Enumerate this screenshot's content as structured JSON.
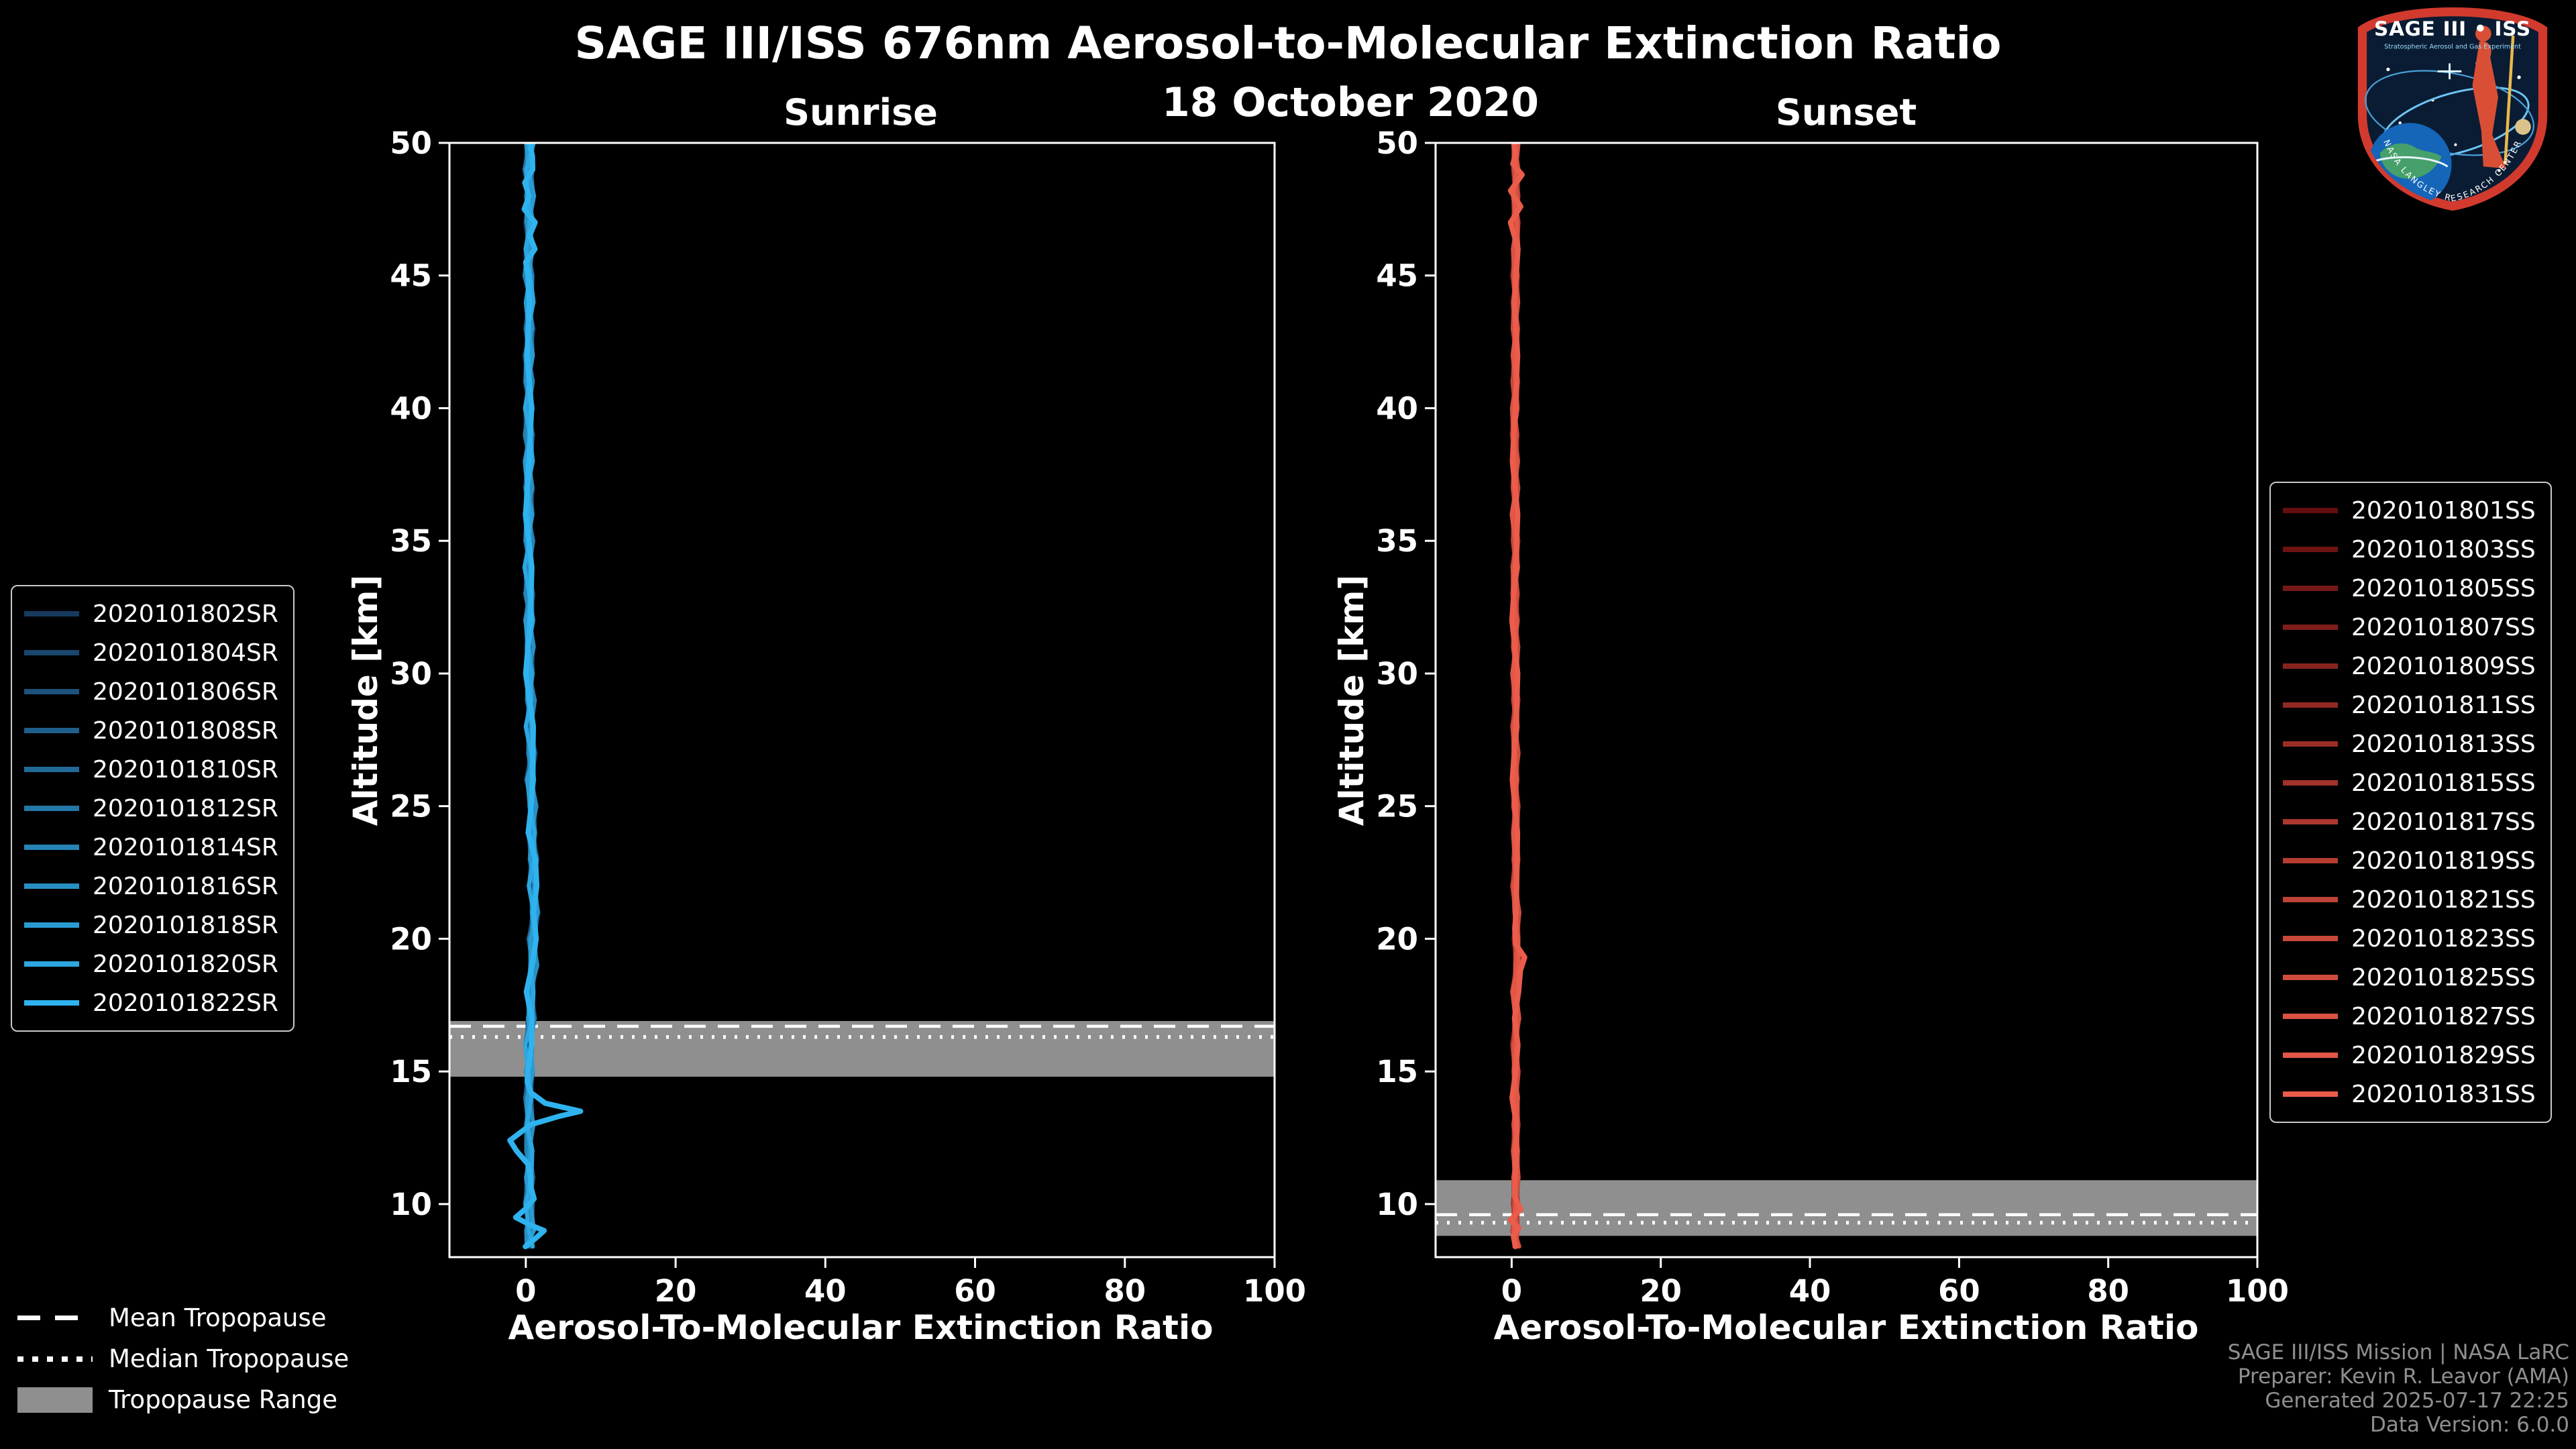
{
  "header": {
    "title": "SAGE III/ISS 676nm Aerosol-to-Molecular Extinction Ratio",
    "date": "18 October 2020"
  },
  "logo": {
    "title_text": "SAGE III • ISS",
    "subtitle_text": "Stratospheric Aerosol and Gas Experiment",
    "ring_text": "NASA LANGLEY RESEARCH CENTER",
    "colors": {
      "border": "#d23a2e",
      "field": "#0a1c33",
      "earth": "#1565b8",
      "land": "#46a06b",
      "figure": "#d94f35",
      "orbit": "#6ec6f5"
    }
  },
  "tropopause_legend": {
    "items": [
      {
        "label": "Mean Tropopause",
        "style": "dashed"
      },
      {
        "label": "Median Tropopause",
        "style": "dotted"
      },
      {
        "label": "Tropopause Range",
        "style": "patch"
      }
    ]
  },
  "footer": {
    "lines": [
      "SAGE III/ISS Mission | NASA LaRC",
      "Preparer: Kevin R. Leavor (AMA)",
      "Generated 2025-07-17 22:25",
      "Data Version: 6.0.0"
    ]
  },
  "chart_data": [
    {
      "type": "line",
      "title": "Sunrise",
      "xlabel": "Aerosol-To-Molecular Extinction Ratio",
      "ylabel": "Altitude [km]",
      "xlim": [
        -10.2,
        100
      ],
      "ylim": [
        8,
        50
      ],
      "xticks": [
        0,
        20,
        40,
        60,
        80,
        100
      ],
      "yticks": [
        10,
        15,
        20,
        25,
        30,
        35,
        40,
        45,
        50
      ],
      "grid": false,
      "legend_position": "outside-left",
      "background": "#000000",
      "tropopause": {
        "mean_km": 16.7,
        "median_km": 16.3,
        "range_km": [
          14.8,
          16.9
        ]
      },
      "jitter_amplitude": 0.4,
      "series": [
        {
          "name": "2020101802SR",
          "color": "#173A5E",
          "profile": "base"
        },
        {
          "name": "2020101804SR",
          "color": "#19466D",
          "profile": "base"
        },
        {
          "name": "2020101806SR",
          "color": "#1C527B",
          "profile": "base"
        },
        {
          "name": "2020101808SR",
          "color": "#1E5E8A",
          "profile": "base"
        },
        {
          "name": "2020101810SR",
          "color": "#216A98",
          "profile": "base"
        },
        {
          "name": "2020101812SR",
          "color": "#2377A7",
          "profile": "base"
        },
        {
          "name": "2020101814SR",
          "color": "#2583B5",
          "profile": "base"
        },
        {
          "name": "2020101816SR",
          "color": "#288FC4",
          "profile": "base"
        },
        {
          "name": "2020101818SR",
          "color": "#2A9BD2",
          "profile": "base"
        },
        {
          "name": "2020101820SR",
          "color": "#2DA7E1",
          "profile": "base"
        },
        {
          "name": "2020101822SR",
          "color": "#2FB3EF",
          "profile": "feature"
        }
      ],
      "profiles": {
        "base": {
          "altitude_km": [
            8.4,
            9,
            10,
            11,
            12,
            13,
            14,
            15,
            16,
            17,
            18,
            19,
            20,
            21,
            22,
            23,
            24,
            25,
            26,
            27,
            28,
            29,
            30,
            31,
            32,
            33,
            34,
            35,
            36,
            37,
            38,
            39,
            40,
            41,
            42,
            43,
            44,
            45,
            46,
            47,
            48,
            49,
            50
          ],
          "ratio": [
            0.3,
            0.5,
            0.5,
            0.4,
            0.5,
            0.4,
            0.5,
            0.4,
            0.5,
            0.6,
            0.7,
            0.9,
            1.0,
            1.1,
            1.0,
            0.9,
            0.9,
            0.8,
            0.7,
            0.7,
            0.6,
            0.6,
            0.5,
            0.5,
            0.5,
            0.4,
            0.4,
            0.4,
            0.4,
            0.4,
            0.4,
            0.4,
            0.4,
            0.4,
            0.4,
            0.5,
            0.5,
            0.4,
            0.4,
            0.5,
            0.5,
            0.4,
            0.5
          ]
        },
        "feature": {
          "altitude_km": [
            8.4,
            8.7,
            9.0,
            9.2,
            9.5,
            9.8,
            10.2,
            10.6,
            11.0,
            11.5,
            12.0,
            12.4,
            12.7,
            13.0,
            13.3,
            13.5,
            13.8,
            14.2,
            14.6,
            15,
            16,
            17,
            18,
            19,
            20,
            21,
            22,
            23,
            24,
            25,
            26,
            28,
            30,
            32,
            34,
            36,
            38,
            40,
            42,
            44,
            45,
            45.5,
            46,
            46.5,
            47,
            47.5,
            48,
            48.5,
            49,
            49.5,
            50
          ],
          "ratio": [
            0.2,
            1.6,
            2.6,
            0.9,
            -0.9,
            0.1,
            0.6,
            0.4,
            0.5,
            0.2,
            -0.6,
            -1.9,
            -0.8,
            0.7,
            4.2,
            6.9,
            2.0,
            0.7,
            0.5,
            0.4,
            0.5,
            0.6,
            0.7,
            0.9,
            1.1,
            1.2,
            1.1,
            1.0,
            0.9,
            0.8,
            0.7,
            0.6,
            0.5,
            0.5,
            0.4,
            0.4,
            0.4,
            0.4,
            0.5,
            0.5,
            0.8,
            0.2,
            0.9,
            0.3,
            0.8,
            0.2,
            0.7,
            0.1,
            0.8,
            0.3,
            0.5
          ]
        }
      }
    },
    {
      "type": "line",
      "title": "Sunset",
      "xlabel": "Aerosol-To-Molecular Extinction Ratio",
      "ylabel": "Altitude [km]",
      "xlim": [
        -10.2,
        100
      ],
      "ylim": [
        8,
        50
      ],
      "xticks": [
        0,
        20,
        40,
        60,
        80,
        100
      ],
      "yticks": [
        10,
        15,
        20,
        25,
        30,
        35,
        40,
        45,
        50
      ],
      "grid": false,
      "legend_position": "outside-right",
      "background": "#000000",
      "tropopause": {
        "mean_km": 9.6,
        "median_km": 9.3,
        "range_km": [
          8.8,
          10.9
        ]
      },
      "jitter_amplitude": 0.28,
      "series": [
        {
          "name": "2020101801SS",
          "color": "#640F0F",
          "profile": "base"
        },
        {
          "name": "2020101803SS",
          "color": "#6D1413",
          "profile": "base"
        },
        {
          "name": "2020101805SS",
          "color": "#761917",
          "profile": "base"
        },
        {
          "name": "2020101807SS",
          "color": "#7F1E1B",
          "profile": "base"
        },
        {
          "name": "2020101809SS",
          "color": "#88241F",
          "profile": "base"
        },
        {
          "name": "2020101811SS",
          "color": "#912923",
          "profile": "base"
        },
        {
          "name": "2020101813SS",
          "color": "#9A2E27",
          "profile": "base"
        },
        {
          "name": "2020101815SS",
          "color": "#A3332B",
          "profile": "base"
        },
        {
          "name": "2020101817SS",
          "color": "#AC382E",
          "profile": "base"
        },
        {
          "name": "2020101819SS",
          "color": "#B53D32",
          "profile": "base"
        },
        {
          "name": "2020101821SS",
          "color": "#BE4236",
          "profile": "base"
        },
        {
          "name": "2020101823SS",
          "color": "#C7483A",
          "profile": "base"
        },
        {
          "name": "2020101825SS",
          "color": "#D04D3E",
          "profile": "base"
        },
        {
          "name": "2020101827SS",
          "color": "#D95242",
          "profile": "base"
        },
        {
          "name": "2020101829SS",
          "color": "#E25746",
          "profile": "base"
        },
        {
          "name": "2020101831SS",
          "color": "#EB5C4A",
          "profile": "feature"
        }
      ],
      "profiles": {
        "base": {
          "altitude_km": [
            8.4,
            9,
            10,
            11,
            12,
            13,
            14,
            15,
            16,
            17,
            18,
            19,
            20,
            21,
            22,
            23,
            24,
            25,
            26,
            27,
            28,
            29,
            30,
            31,
            32,
            33,
            34,
            35,
            36,
            37,
            38,
            39,
            40,
            41,
            42,
            43,
            44,
            45,
            46,
            47,
            48,
            49,
            50
          ],
          "ratio": [
            0.6,
            0.4,
            0.6,
            0.5,
            0.6,
            0.5,
            0.6,
            0.5,
            0.5,
            0.6,
            0.5,
            0.7,
            0.7,
            0.6,
            0.5,
            0.5,
            0.6,
            0.5,
            0.5,
            0.5,
            0.5,
            0.5,
            0.5,
            0.5,
            0.5,
            0.4,
            0.5,
            0.5,
            0.4,
            0.5,
            0.5,
            0.4,
            0.4,
            0.5,
            0.5,
            0.5,
            0.5,
            0.5,
            0.5,
            0.6,
            0.5,
            0.6,
            0.5
          ]
        },
        "feature": {
          "altitude_km": [
            8.4,
            8.8,
            9.1,
            9.4,
            9.8,
            10.3,
            11,
            12,
            13,
            14,
            15,
            16,
            17,
            18,
            18.8,
            19.3,
            19.8,
            20.4,
            21,
            22,
            24,
            26,
            28,
            30,
            32,
            34,
            36,
            38,
            40,
            42,
            44,
            46,
            47,
            47.6,
            48.2,
            48.8,
            49.2,
            49.6,
            50
          ],
          "ratio": [
            0.7,
            0.1,
            0.9,
            -0.3,
            0.8,
            0.5,
            0.6,
            0.5,
            0.6,
            0.5,
            0.5,
            0.6,
            0.5,
            0.7,
            1.1,
            1.6,
            0.9,
            0.5,
            0.6,
            0.5,
            0.5,
            0.5,
            0.5,
            0.5,
            0.4,
            0.5,
            0.5,
            0.4,
            0.5,
            0.5,
            0.6,
            0.9,
            0.2,
            1.2,
            -0.3,
            1.1,
            0.1,
            0.9,
            0.5
          ]
        }
      }
    }
  ]
}
